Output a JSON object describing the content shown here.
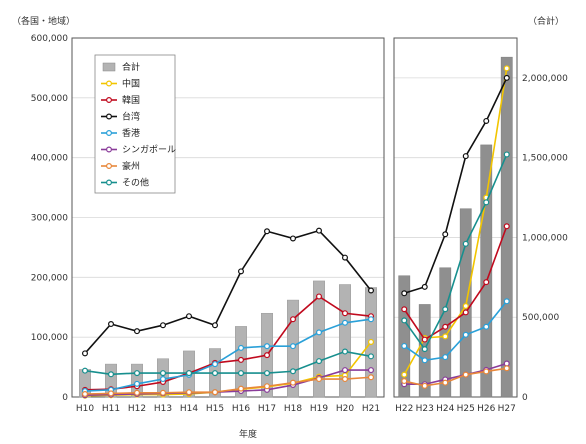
{
  "chart_data": {
    "type": "bar+line",
    "left_unit": "（各国・地域）",
    "right_unit": "（合計）",
    "xlabel": "年度",
    "left_panel": {
      "categories": [
        "H10",
        "H11",
        "H12",
        "H13",
        "H14",
        "H15",
        "H16",
        "H17",
        "H18",
        "H19",
        "H20",
        "H21"
      ],
      "ylim": [
        0,
        600000
      ],
      "yticks": [
        "0",
        "100,000",
        "200,000",
        "300,000",
        "400,000",
        "500,000",
        "600,000"
      ],
      "ytick_values": [
        0,
        100000,
        200000,
        300000,
        400000,
        500000,
        600000
      ]
    },
    "right_panel": {
      "categories": [
        "H22",
        "H23",
        "H24",
        "H25",
        "H26",
        "H27"
      ],
      "left_scale_ylim": [
        0,
        600000
      ],
      "right_ylim": [
        0,
        2250000
      ],
      "right_yticks": [
        "0",
        "500,000",
        "1,000,000",
        "1,500,000",
        "2,000,000"
      ],
      "right_ytick_values": [
        0,
        500000,
        1000000,
        1500000,
        2000000
      ]
    },
    "bars_total": {
      "name": "合計",
      "color": "#b3b3b3",
      "left_values": [
        46000,
        55000,
        55000,
        64000,
        77000,
        81000,
        118000,
        140000,
        162000,
        194000,
        188000,
        183000
      ],
      "right_values": [
        760000,
        580000,
        810000,
        1180000,
        1580000,
        2130000
      ]
    },
    "series": [
      {
        "name": "中国",
        "color": "#f2c500",
        "left_values": [
          2000,
          3000,
          4000,
          4000,
          5000,
          8000,
          13000,
          17000,
          23000,
          34000,
          36000,
          92000
        ],
        "right_values": [
          140000,
          370000,
          380000,
          570000,
          1250000,
          2060000
        ]
      },
      {
        "name": "韓国",
        "color": "#c00a1e",
        "left_values": [
          12000,
          13000,
          18000,
          25000,
          40000,
          57000,
          62000,
          70000,
          130000,
          168000,
          140000,
          135000
        ],
        "right_values": [
          550000,
          360000,
          440000,
          530000,
          720000,
          1070000
        ]
      },
      {
        "name": "台湾",
        "color": "#111111",
        "left_values": [
          73000,
          122000,
          110000,
          120000,
          135000,
          120000,
          210000,
          277000,
          265000,
          278000,
          233000,
          178000
        ],
        "right_values": [
          650000,
          690000,
          1020000,
          1510000,
          1730000,
          2000000
        ]
      },
      {
        "name": "香港",
        "color": "#2aa0d8",
        "left_values": [
          10000,
          12000,
          22000,
          30000,
          37000,
          55000,
          82000,
          85000,
          85000,
          108000,
          124000,
          130000
        ],
        "right_values": [
          320000,
          230000,
          250000,
          390000,
          440000,
          600000
        ]
      },
      {
        "name": "シンガポール",
        "color": "#8a3c9a",
        "left_values": [
          3000,
          4000,
          5000,
          6000,
          7000,
          8000,
          10000,
          12000,
          20000,
          32000,
          45000,
          45000
        ],
        "right_values": [
          80000,
          80000,
          110000,
          140000,
          170000,
          210000
        ]
      },
      {
        "name": "豪州",
        "color": "#e8873a",
        "left_values": [
          5000,
          6000,
          7000,
          7000,
          8000,
          8000,
          14000,
          18000,
          24000,
          30000,
          30000,
          33000
        ],
        "right_values": [
          100000,
          70000,
          90000,
          140000,
          160000,
          180000
        ]
      },
      {
        "name": "その他",
        "color": "#178f8e",
        "left_values": [
          44000,
          38000,
          40000,
          40000,
          40000,
          40000,
          40000,
          40000,
          43000,
          60000,
          76000,
          68000
        ],
        "right_values": [
          480000,
          300000,
          550000,
          960000,
          1220000,
          1520000
        ]
      }
    ]
  }
}
